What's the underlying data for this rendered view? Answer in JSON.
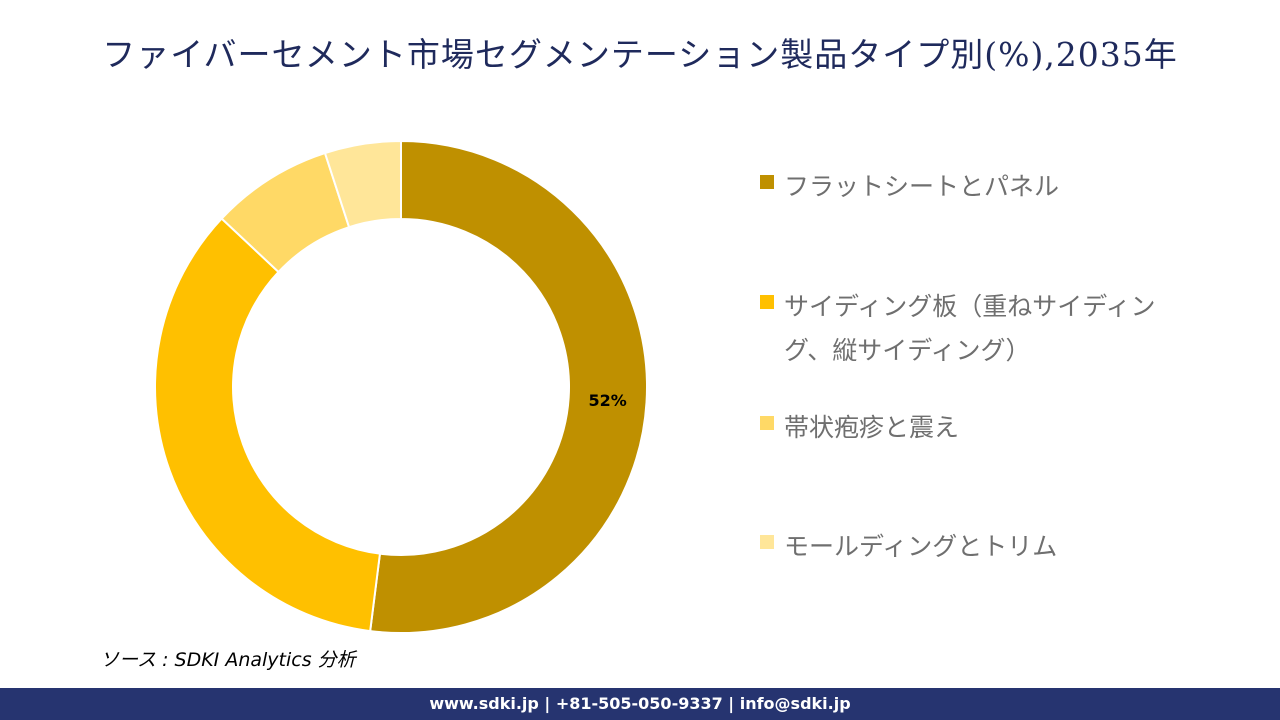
{
  "chart_data": {
    "type": "pie",
    "variant": "donut",
    "title": "ファイバーセメント市場セグメンテーション製品タイプ別(%),2035年",
    "categories": [
      "フラットシートとパネル",
      "サイディング板（重ねサイディング、縦サイディング）",
      "帯状疱疹と震え",
      "モールディングとトリム"
    ],
    "values": [
      52,
      35,
      8,
      5
    ],
    "colors": [
      "#BF9000",
      "#FFC000",
      "#FFD966",
      "#FFE699"
    ],
    "data_labels": [
      "52%",
      "",
      "",
      ""
    ],
    "legend_position": "right"
  },
  "source": "ソース : SDKI Analytics 分析",
  "footer": "www.sdki.jp | +81-505-050-9337 | info@sdki.jp"
}
